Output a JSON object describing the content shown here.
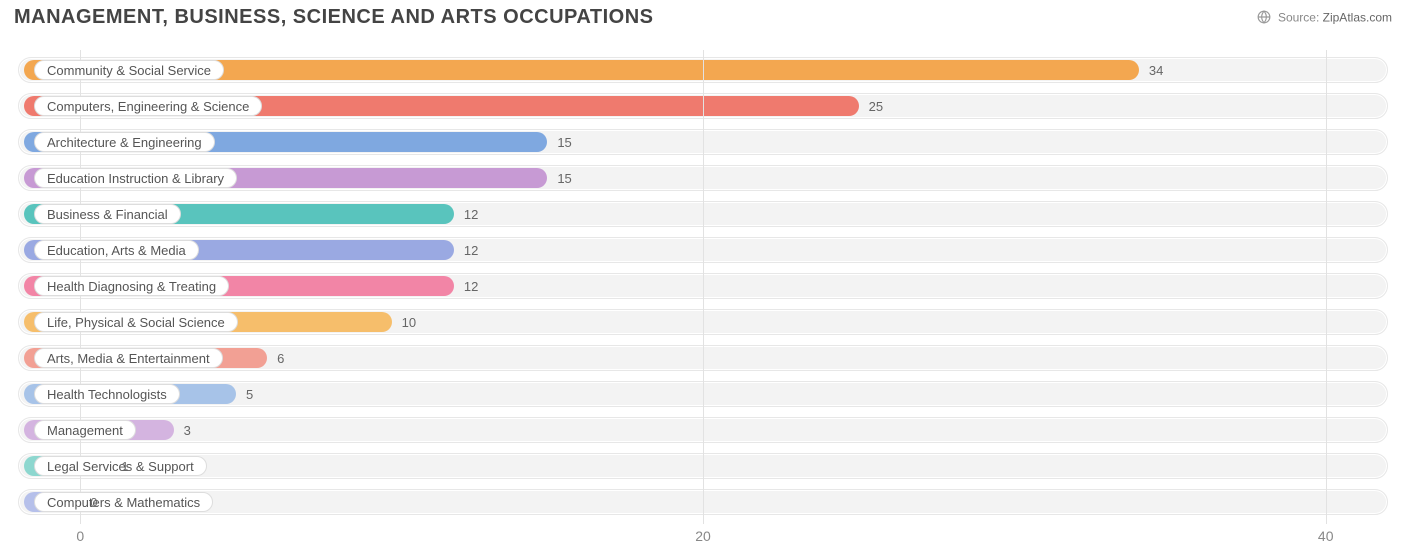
{
  "title": "MANAGEMENT, BUSINESS, SCIENCE AND ARTS OCCUPATIONS",
  "source": {
    "label": "Source:",
    "site": "ZipAtlas.com"
  },
  "chart": {
    "type": "bar-horizontal",
    "xlim": [
      -2,
      42
    ],
    "xticks": [
      0,
      20,
      40
    ],
    "track_color": "#f3f3f3",
    "track_border": "#e7e7e7",
    "grid_color": "#e2e2e2",
    "title_color": "#444444",
    "label_fontsize": 13,
    "title_fontsize": 20,
    "rows": [
      {
        "label": "Community & Social Service",
        "value": 34,
        "color": "#f3a750"
      },
      {
        "label": "Computers, Engineering & Science",
        "value": 25,
        "color": "#ef7a6e"
      },
      {
        "label": "Architecture & Engineering",
        "value": 15,
        "color": "#7fa8e0"
      },
      {
        "label": "Education Instruction & Library",
        "value": 15,
        "color": "#c79ad4"
      },
      {
        "label": "Business & Financial",
        "value": 12,
        "color": "#59c4bd"
      },
      {
        "label": "Education, Arts & Media",
        "value": 12,
        "color": "#9aa9e2"
      },
      {
        "label": "Health Diagnosing & Treating",
        "value": 12,
        "color": "#f285a6"
      },
      {
        "label": "Life, Physical & Social Science",
        "value": 10,
        "color": "#f6be6b"
      },
      {
        "label": "Arts, Media & Entertainment",
        "value": 6,
        "color": "#f2a094"
      },
      {
        "label": "Health Technologists",
        "value": 5,
        "color": "#a7c3e8"
      },
      {
        "label": "Management",
        "value": 3,
        "color": "#d4b4e0"
      },
      {
        "label": "Legal Services & Support",
        "value": 1,
        "color": "#8dd7cf"
      },
      {
        "label": "Computers & Mathematics",
        "value": 0,
        "color": "#b6c0ea"
      }
    ]
  }
}
